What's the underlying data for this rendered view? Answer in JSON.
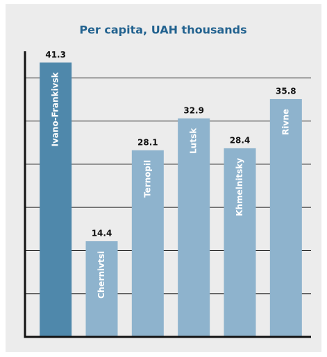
{
  "chart_data": {
    "type": "bar",
    "title": "Per capita, UAH thousands",
    "categories": [
      "Ivano-Frankivsk",
      "Chernivtsi",
      "Ternopil",
      "Lutsk",
      "Khmelnitsky",
      "Rivne"
    ],
    "values": [
      41.3,
      14.4,
      28.1,
      32.9,
      28.4,
      35.8
    ],
    "colors": [
      "#4f88ab",
      "#8eb3cd",
      "#8eb3cd",
      "#8eb3cd",
      "#8eb3cd",
      "#8eb3cd"
    ],
    "ylim": [
      0,
      43
    ],
    "yticks": [
      0,
      6.5,
      13,
      19.5,
      26,
      32.5,
      39
    ],
    "grid": true
  }
}
